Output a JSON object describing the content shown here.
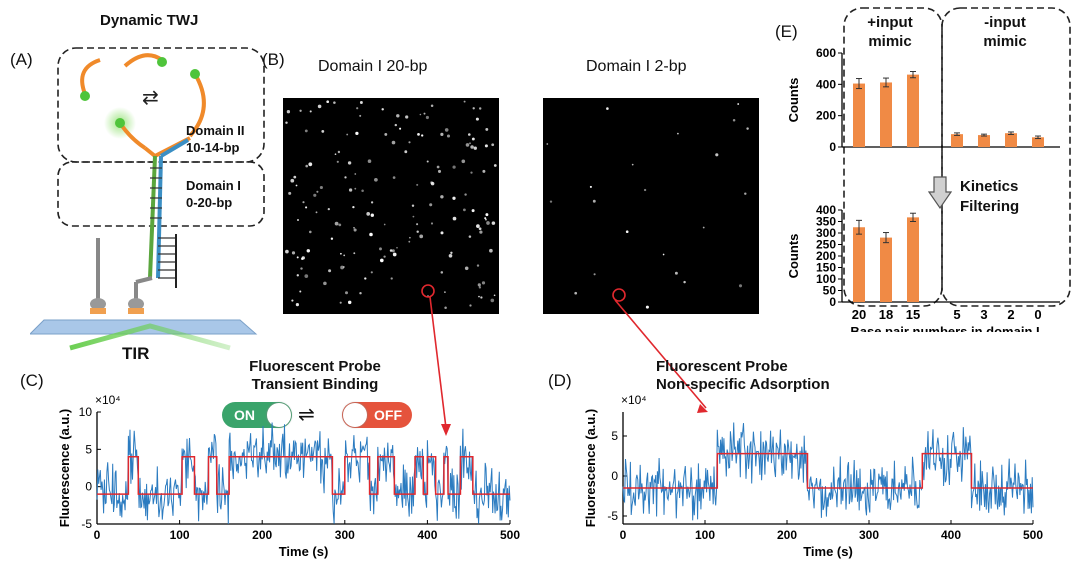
{
  "panels": {
    "A": {
      "letter": "(A)",
      "title": "Dynamic TWJ",
      "domain2_l1": "Domain II",
      "domain2_l2": "10-14-bp",
      "domain1_l1": "Domain I",
      "domain1_l2": "0-20-bp",
      "tir_label": "TIR"
    },
    "B": {
      "letter": "(B)",
      "left_title": "Domain I  20-bp",
      "right_title": "Domain I 2-bp"
    },
    "C": {
      "letter": "(C)",
      "title_l1": "Fluorescent Probe",
      "title_l2": "Transient Binding",
      "on_label": "ON",
      "off_label": "OFF",
      "exponent": "×10⁴"
    },
    "D": {
      "letter": "(D)",
      "title_l1": "Fluorescent Probe",
      "title_l2": "Non-specific Adsorption",
      "exponent": "×10⁴"
    },
    "E": {
      "letter": "(E)",
      "pos_l1": "+input",
      "pos_l2": "mimic",
      "neg_l1": "-input",
      "neg_l2": "mimic",
      "filter_l1": "Kinetics",
      "filter_l2": "Filtering"
    }
  },
  "colors": {
    "bar": "#f08a45",
    "trace": "#2b7bc0",
    "fit": "#e0282e",
    "on": "#3aa46b",
    "off": "#e5533c"
  },
  "chart_data": [
    {
      "id": "C",
      "type": "line",
      "xlabel": "Time (s)",
      "ylabel": "Fluorescence (a.u.)",
      "xlim": [
        0,
        500
      ],
      "ylim": [
        -5,
        10
      ],
      "xticks": [
        0,
        100,
        200,
        300,
        400,
        500
      ],
      "yticks": [
        -5,
        0,
        5,
        10
      ],
      "tick_labels_y": [
        "-5",
        "0",
        "5",
        "10"
      ],
      "tick_labels_x": [
        "0",
        "100",
        "200",
        "300",
        "400",
        "500"
      ],
      "fit_levels": {
        "low": -1,
        "high": 4
      },
      "fit_steps": [
        [
          0,
          -1
        ],
        [
          38,
          4
        ],
        [
          50,
          -1
        ],
        [
          100,
          -1
        ],
        [
          103,
          4
        ],
        [
          118,
          -1
        ],
        [
          135,
          4
        ],
        [
          145,
          -1
        ],
        [
          160,
          4
        ],
        [
          285,
          -1
        ],
        [
          300,
          4
        ],
        [
          330,
          -1
        ],
        [
          340,
          4
        ],
        [
          360,
          -1
        ],
        [
          385,
          4
        ],
        [
          395,
          -1
        ],
        [
          400,
          4
        ],
        [
          410,
          -1
        ],
        [
          420,
          4
        ],
        [
          425,
          -1
        ],
        [
          440,
          4
        ],
        [
          455,
          -1
        ],
        [
          500,
          -1
        ]
      ]
    },
    {
      "id": "D",
      "type": "line",
      "xlabel": "Time (s)",
      "ylabel": "Fluorescence (a.u.)",
      "xlim": [
        0,
        500
      ],
      "ylim": [
        -6,
        8
      ],
      "xticks": [
        0,
        100,
        200,
        300,
        400,
        500
      ],
      "yticks": [
        -5,
        0,
        5
      ],
      "tick_labels_y": [
        "-5",
        "0",
        "5"
      ],
      "tick_labels_x": [
        "0",
        "100",
        "200",
        "300",
        "400",
        "500"
      ],
      "fit_levels": {
        "low": -1.5,
        "high": 2.8
      },
      "fit_steps": [
        [
          0,
          -1.5
        ],
        [
          115,
          2.8
        ],
        [
          225,
          -1.5
        ],
        [
          365,
          2.8
        ],
        [
          425,
          -1.5
        ],
        [
          500,
          -1.5
        ]
      ]
    },
    {
      "id": "E-top",
      "type": "bar",
      "ylabel": "Counts",
      "ylim": [
        0,
        600
      ],
      "yticks": [
        0,
        200,
        400,
        600
      ],
      "tick_labels_y": [
        "0",
        "200",
        "400",
        "600"
      ],
      "categories": [
        "20",
        "18",
        "15",
        "5",
        "3",
        "2",
        "0"
      ],
      "values": [
        405,
        412,
        462,
        82,
        76,
        88,
        62
      ],
      "errors": [
        32,
        28,
        20,
        8,
        6,
        8,
        8
      ]
    },
    {
      "id": "E-bottom",
      "type": "bar",
      "xlabel": "Base pair numbers in domain I",
      "ylabel": "Counts",
      "ylim": [
        0,
        400
      ],
      "yticks": [
        0,
        50,
        100,
        150,
        200,
        250,
        300,
        350,
        400
      ],
      "tick_labels_y": [
        "0",
        "50",
        "100",
        "150",
        "200",
        "250",
        "300",
        "350",
        "400"
      ],
      "categories": [
        "20",
        "18",
        "15",
        "5",
        "3",
        "2",
        "0"
      ],
      "values": [
        325,
        280,
        368,
        0,
        0,
        0,
        0
      ],
      "errors": [
        30,
        22,
        18,
        0,
        0,
        0,
        0
      ]
    }
  ]
}
